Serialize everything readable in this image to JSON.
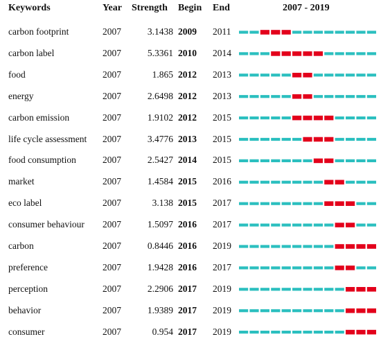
{
  "chart_data": {
    "type": "table",
    "columns": [
      "Keywords",
      "Year",
      "Strength",
      "Begin",
      "End",
      "2007 - 2019"
    ],
    "timeline_start": 2007,
    "timeline_end": 2019,
    "colors": {
      "base": "#2bbfbf",
      "burst": "#e3001b"
    },
    "rows": [
      {
        "keyword": "carbon footprint",
        "year": "2007",
        "strength": "3.1438",
        "begin": "2009",
        "end": "2011"
      },
      {
        "keyword": "carbon label",
        "year": "2007",
        "strength": "5.3361",
        "begin": "2010",
        "end": "2014"
      },
      {
        "keyword": "food",
        "year": "2007",
        "strength": "1.865",
        "begin": "2012",
        "end": "2013"
      },
      {
        "keyword": "energy",
        "year": "2007",
        "strength": "2.6498",
        "begin": "2012",
        "end": "2013"
      },
      {
        "keyword": "carbon emission",
        "year": "2007",
        "strength": "1.9102",
        "begin": "2012",
        "end": "2015"
      },
      {
        "keyword": "life cycle assessment",
        "year": "2007",
        "strength": "3.4776",
        "begin": "2013",
        "end": "2015"
      },
      {
        "keyword": "food consumption",
        "year": "2007",
        "strength": "2.5427",
        "begin": "2014",
        "end": "2015"
      },
      {
        "keyword": "market",
        "year": "2007",
        "strength": "1.4584",
        "begin": "2015",
        "end": "2016"
      },
      {
        "keyword": "eco label",
        "year": "2007",
        "strength": "3.138",
        "begin": "2015",
        "end": "2017"
      },
      {
        "keyword": "consumer behaviour",
        "year": "2007",
        "strength": "1.5097",
        "begin": "2016",
        "end": "2017"
      },
      {
        "keyword": "carbon",
        "year": "2007",
        "strength": "0.8446",
        "begin": "2016",
        "end": "2019"
      },
      {
        "keyword": "preference",
        "year": "2007",
        "strength": "1.9428",
        "begin": "2016",
        "end": "2017"
      },
      {
        "keyword": "perception",
        "year": "2007",
        "strength": "2.2906",
        "begin": "2017",
        "end": "2019"
      },
      {
        "keyword": "behavior",
        "year": "2007",
        "strength": "1.9389",
        "begin": "2017",
        "end": "2019"
      },
      {
        "keyword": "consumer",
        "year": "2007",
        "strength": "0.954",
        "begin": "2017",
        "end": "2019"
      }
    ]
  }
}
